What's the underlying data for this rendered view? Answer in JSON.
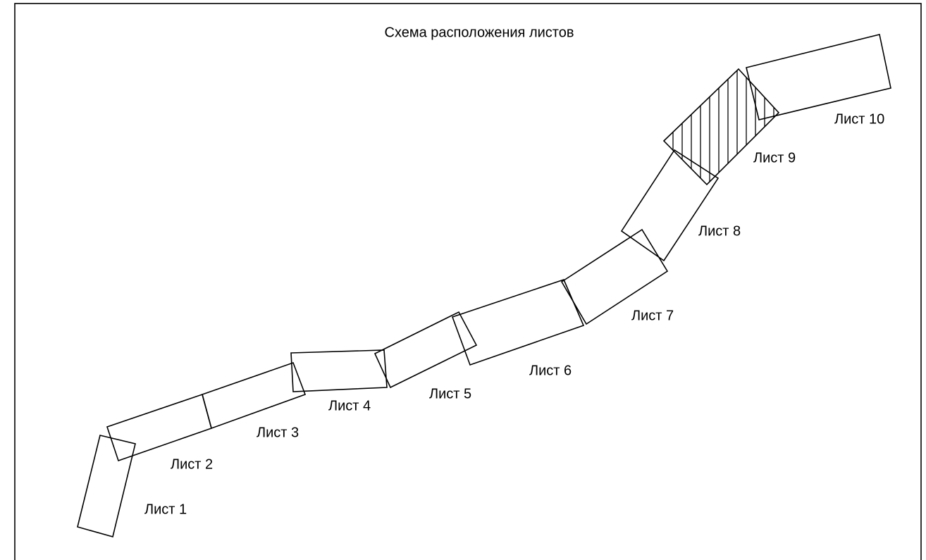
{
  "title": "Схема расположения листов",
  "sheets": [
    "Лист 1",
    "Лист 2",
    "Лист 3",
    "Лист 4",
    "Лист 5",
    "Лист 6",
    "Лист 7",
    "Лист 8",
    "Лист 9",
    "Лист 10"
  ]
}
